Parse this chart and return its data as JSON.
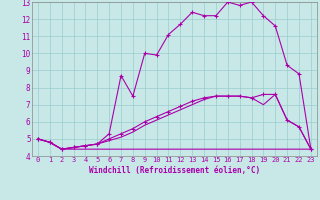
{
  "xlabel": "Windchill (Refroidissement éolien,°C)",
  "xlim": [
    -0.5,
    23.5
  ],
  "ylim": [
    4,
    13
  ],
  "yticks": [
    4,
    5,
    6,
    7,
    8,
    9,
    10,
    11,
    12,
    13
  ],
  "xticks": [
    0,
    1,
    2,
    3,
    4,
    5,
    6,
    7,
    8,
    9,
    10,
    11,
    12,
    13,
    14,
    15,
    16,
    17,
    18,
    19,
    20,
    21,
    22,
    23
  ],
  "bg_color": "#c8e8e8",
  "grid_color": "#99cccc",
  "line_color": "#aa00aa",
  "line1_x": [
    0,
    1,
    2,
    3,
    4,
    5,
    6,
    7,
    8,
    9,
    10,
    11,
    12,
    13,
    14,
    15,
    16,
    17,
    18,
    19,
    20,
    21,
    22,
    23
  ],
  "line1_y": [
    5.0,
    4.8,
    4.4,
    4.5,
    4.6,
    4.7,
    5.3,
    8.7,
    7.5,
    10.0,
    9.9,
    11.1,
    11.7,
    12.4,
    12.2,
    12.2,
    13.0,
    12.8,
    13.0,
    12.2,
    11.6,
    9.3,
    8.8,
    4.4
  ],
  "line2_x": [
    0,
    1,
    2,
    3,
    4,
    5,
    6,
    7,
    8,
    9,
    10,
    11,
    12,
    13,
    14,
    15,
    16,
    17,
    18,
    19,
    20,
    21,
    22,
    23
  ],
  "line2_y": [
    5.0,
    4.8,
    4.4,
    4.5,
    4.6,
    4.7,
    5.0,
    5.3,
    5.6,
    6.0,
    6.3,
    6.6,
    6.9,
    7.2,
    7.4,
    7.5,
    7.5,
    7.5,
    7.4,
    7.6,
    7.6,
    6.1,
    5.7,
    4.4
  ],
  "line3_x": [
    0,
    1,
    2,
    3,
    4,
    5,
    6,
    7,
    8,
    9,
    10,
    11,
    12,
    13,
    14,
    15,
    16,
    17,
    18,
    19,
    20,
    21,
    22,
    23
  ],
  "line3_y": [
    5.0,
    4.8,
    4.4,
    4.4,
    4.4,
    4.4,
    4.4,
    4.4,
    4.4,
    4.4,
    4.4,
    4.4,
    4.4,
    4.4,
    4.4,
    4.4,
    4.4,
    4.4,
    4.4,
    4.4,
    4.4,
    4.4,
    4.4,
    4.4
  ],
  "line4_x": [
    0,
    1,
    2,
    3,
    4,
    5,
    6,
    7,
    8,
    9,
    10,
    11,
    12,
    13,
    14,
    15,
    16,
    17,
    18,
    19,
    20,
    21,
    22,
    23
  ],
  "line4_y": [
    5.0,
    4.8,
    4.4,
    4.5,
    4.6,
    4.7,
    4.9,
    5.1,
    5.4,
    5.8,
    6.1,
    6.4,
    6.7,
    7.0,
    7.3,
    7.5,
    7.5,
    7.5,
    7.4,
    7.0,
    7.6,
    6.1,
    5.7,
    4.4
  ]
}
